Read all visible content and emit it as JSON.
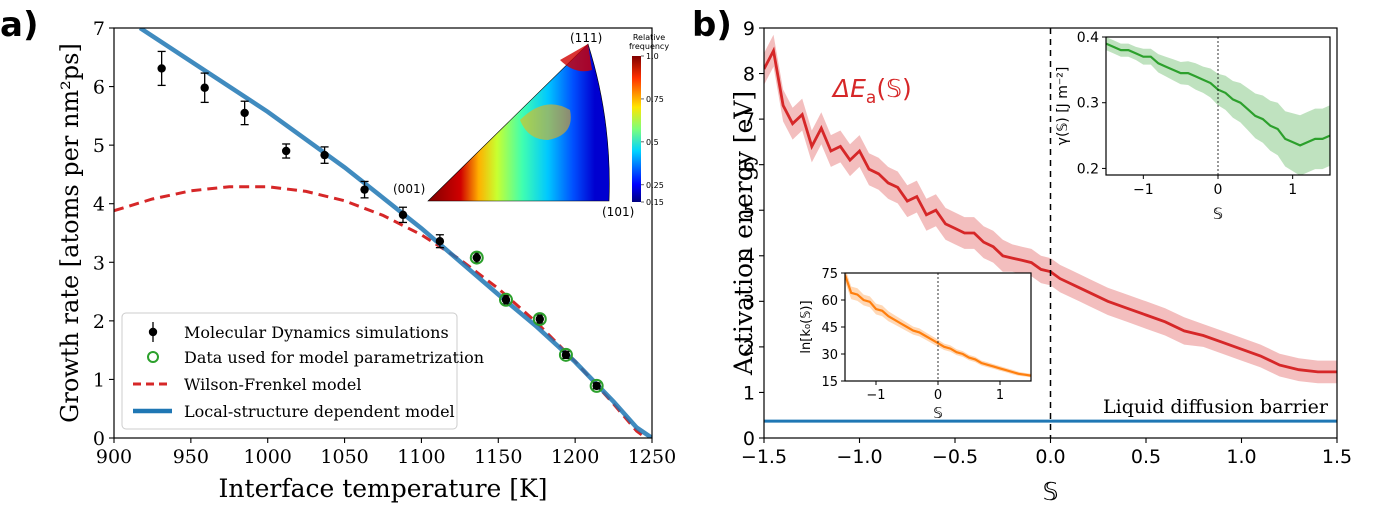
{
  "panels": {
    "a_label": "a)",
    "b_label": "b)"
  },
  "chart_data": [
    {
      "id": "a",
      "type": "line",
      "xlabel": "Interface temperature [K]",
      "ylabel": "Growth rate [atoms per nm²ps]",
      "xlim": [
        900,
        1250
      ],
      "ylim": [
        0,
        7
      ],
      "xticks": [
        "900",
        "950",
        "1000",
        "1050",
        "1100",
        "1150",
        "1200",
        "1250"
      ],
      "yticks": [
        "0",
        "1",
        "2",
        "3",
        "4",
        "5",
        "6",
        "7"
      ],
      "legend_position": "lower-left",
      "legend": [
        "Molecular Dynamics simulations",
        "Data used for model parametrization",
        "Wilson-Frenkel model",
        "Local-structure dependent model"
      ],
      "md_points": {
        "x": [
          931,
          959,
          985,
          1012,
          1037,
          1063,
          1088,
          1112,
          1136,
          1155,
          1177,
          1194,
          1214
        ],
        "y": [
          6.31,
          5.98,
          5.55,
          4.9,
          4.83,
          4.24,
          3.81,
          3.36,
          3.08,
          2.36,
          2.03,
          1.42,
          0.89
        ],
        "err": [
          0.29,
          0.25,
          0.2,
          0.12,
          0.14,
          0.14,
          0.13,
          0.11,
          0.08,
          0.07,
          0.07,
          0.06,
          0.05
        ]
      },
      "param_points": {
        "x": [
          1136,
          1155,
          1177,
          1194,
          1214
        ],
        "y": [
          3.08,
          2.36,
          2.03,
          1.42,
          0.89
        ]
      },
      "wilson_frenkel": {
        "x": [
          900,
          925,
          950,
          975,
          1000,
          1025,
          1050,
          1075,
          1100,
          1125,
          1150,
          1175,
          1200,
          1225,
          1240,
          1246
        ],
        "y": [
          3.88,
          4.08,
          4.22,
          4.29,
          4.29,
          4.21,
          4.05,
          3.8,
          3.47,
          3.05,
          2.55,
          1.97,
          1.31,
          0.58,
          0.12,
          0.0
        ]
      },
      "local_structure": {
        "x": [
          917,
          950,
          1000,
          1050,
          1100,
          1150,
          1175,
          1200,
          1225,
          1240,
          1250
        ],
        "y": [
          7.0,
          6.43,
          5.57,
          4.62,
          3.58,
          2.45,
          1.9,
          1.3,
          0.62,
          0.18,
          0.0
        ]
      },
      "inset": {
        "title": "Relative\nfrequency",
        "corner_labels": [
          "(111)",
          "(001)",
          "(101)"
        ],
        "colorbar_ticks": [
          "1.0",
          "0.75",
          "0.5",
          "0.25",
          "0.15"
        ],
        "colorbar_values": [
          1.0,
          0.75,
          0.5,
          0.25,
          0.15
        ]
      }
    },
    {
      "id": "b",
      "type": "line",
      "xlabel": "𝕊",
      "ylabel": "Activation energy [eV]",
      "xlim": [
        -1.5,
        1.5
      ],
      "ylim": [
        0,
        9
      ],
      "xticks": [
        "−1.5",
        "−1.0",
        "−0.5",
        "0.0",
        "0.5",
        "1.0",
        "1.5"
      ],
      "yticks": [
        "0",
        "1",
        "2",
        "3",
        "4",
        "5",
        "6",
        "7",
        "8",
        "9"
      ],
      "series_label": "ΔE",
      "series_label_sub": "a",
      "series_label_arg": "(𝕊)",
      "hline_label": "Liquid diffusion barrier",
      "hline_value": 0.37,
      "series": [
        {
          "name": "ΔE_a",
          "x": [
            -1.5,
            -1.45,
            -1.4,
            -1.35,
            -1.3,
            -1.25,
            -1.2,
            -1.15,
            -1.1,
            -1.05,
            -1.0,
            -0.95,
            -0.9,
            -0.85,
            -0.8,
            -0.75,
            -0.7,
            -0.65,
            -0.6,
            -0.55,
            -0.5,
            -0.45,
            -0.4,
            -0.35,
            -0.3,
            -0.25,
            -0.2,
            -0.15,
            -0.1,
            -0.05,
            0.0,
            0.05,
            0.1,
            0.15,
            0.2,
            0.3,
            0.4,
            0.5,
            0.6,
            0.7,
            0.8,
            0.9,
            1.0,
            1.1,
            1.2,
            1.3,
            1.4,
            1.5
          ],
          "y": [
            8.1,
            8.5,
            7.3,
            6.9,
            7.1,
            6.4,
            6.8,
            6.3,
            6.4,
            6.1,
            6.3,
            5.9,
            5.8,
            5.6,
            5.5,
            5.2,
            5.3,
            4.9,
            5.0,
            4.7,
            4.6,
            4.5,
            4.5,
            4.3,
            4.2,
            4.0,
            3.95,
            3.9,
            3.85,
            3.7,
            3.65,
            3.5,
            3.4,
            3.3,
            3.2,
            3.0,
            2.85,
            2.7,
            2.55,
            2.35,
            2.25,
            2.1,
            1.95,
            1.8,
            1.6,
            1.5,
            1.45,
            1.45
          ],
          "band": [
            0.35,
            0.35,
            0.35,
            0.35,
            0.35,
            0.35,
            0.35,
            0.35,
            0.35,
            0.35,
            0.35,
            0.35,
            0.35,
            0.35,
            0.35,
            0.35,
            0.35,
            0.35,
            0.35,
            0.35,
            0.35,
            0.35,
            0.35,
            0.35,
            0.35,
            0.35,
            0.3,
            0.3,
            0.3,
            0.3,
            0.3,
            0.3,
            0.3,
            0.3,
            0.3,
            0.3,
            0.3,
            0.3,
            0.3,
            0.3,
            0.25,
            0.25,
            0.25,
            0.25,
            0.25,
            0.25,
            0.25,
            0.25
          ],
          "color": "#d62728"
        }
      ],
      "inset_gamma": {
        "ylabel": "γ(𝕊) [J m⁻²]",
        "xlabel": "𝕊",
        "xlim": [
          -1.5,
          1.5
        ],
        "ylim": [
          0.19,
          0.4
        ],
        "xticks": [
          "−1",
          "0",
          "1"
        ],
        "yticks": [
          "0.2",
          "0.3",
          "0.4"
        ],
        "x": [
          -1.5,
          -1.4,
          -1.3,
          -1.2,
          -1.1,
          -1.0,
          -0.9,
          -0.8,
          -0.7,
          -0.6,
          -0.5,
          -0.4,
          -0.3,
          -0.2,
          -0.1,
          0.0,
          0.1,
          0.2,
          0.3,
          0.4,
          0.5,
          0.6,
          0.7,
          0.8,
          0.9,
          1.0,
          1.1,
          1.2,
          1.3,
          1.4,
          1.5
        ],
        "y": [
          0.39,
          0.385,
          0.38,
          0.38,
          0.375,
          0.37,
          0.37,
          0.36,
          0.355,
          0.35,
          0.345,
          0.345,
          0.34,
          0.335,
          0.33,
          0.32,
          0.315,
          0.305,
          0.3,
          0.29,
          0.28,
          0.275,
          0.265,
          0.26,
          0.245,
          0.24,
          0.235,
          0.24,
          0.245,
          0.245,
          0.25
        ],
        "band": [
          0.01,
          0.01,
          0.01,
          0.01,
          0.01,
          0.012,
          0.012,
          0.014,
          0.015,
          0.016,
          0.017,
          0.018,
          0.02,
          0.02,
          0.022,
          0.024,
          0.026,
          0.028,
          0.03,
          0.032,
          0.034,
          0.036,
          0.038,
          0.04,
          0.042,
          0.044,
          0.046,
          0.046,
          0.046,
          0.046,
          0.046
        ],
        "color": "#2ca02c"
      },
      "inset_k0": {
        "ylabel": "ln[k₀(𝕊)]",
        "xlabel": "𝕊",
        "xlim": [
          -1.5,
          1.5
        ],
        "ylim": [
          15,
          75
        ],
        "xticks": [
          "−1",
          "0",
          "1"
        ],
        "yticks": [
          "15",
          "30",
          "45",
          "60",
          "75"
        ],
        "x": [
          -1.5,
          -1.4,
          -1.3,
          -1.2,
          -1.1,
          -1.0,
          -0.9,
          -0.8,
          -0.7,
          -0.6,
          -0.5,
          -0.4,
          -0.3,
          -0.2,
          -0.1,
          0.0,
          0.1,
          0.2,
          0.3,
          0.4,
          0.5,
          0.6,
          0.7,
          0.8,
          0.9,
          1.0,
          1.1,
          1.2,
          1.3,
          1.4,
          1.5
        ],
        "y": [
          74,
          64,
          63,
          60,
          59,
          55,
          54,
          51,
          49,
          47,
          45,
          43,
          42,
          40,
          38,
          36,
          34,
          33,
          31,
          30,
          28,
          27,
          25,
          24,
          23,
          22,
          21,
          20,
          19,
          18.5,
          18
        ],
        "band": [
          4,
          3.5,
          3.5,
          3,
          3,
          3,
          3,
          2.8,
          2.6,
          2.5,
          2.4,
          2.2,
          2.2,
          2.1,
          2,
          2,
          1.8,
          1.8,
          1.6,
          1.6,
          1.5,
          1.5,
          1.4,
          1.4,
          1.3,
          1.3,
          1.2,
          1.2,
          1.1,
          1.0,
          1.0
        ],
        "color": "#ff7f0e"
      }
    }
  ]
}
